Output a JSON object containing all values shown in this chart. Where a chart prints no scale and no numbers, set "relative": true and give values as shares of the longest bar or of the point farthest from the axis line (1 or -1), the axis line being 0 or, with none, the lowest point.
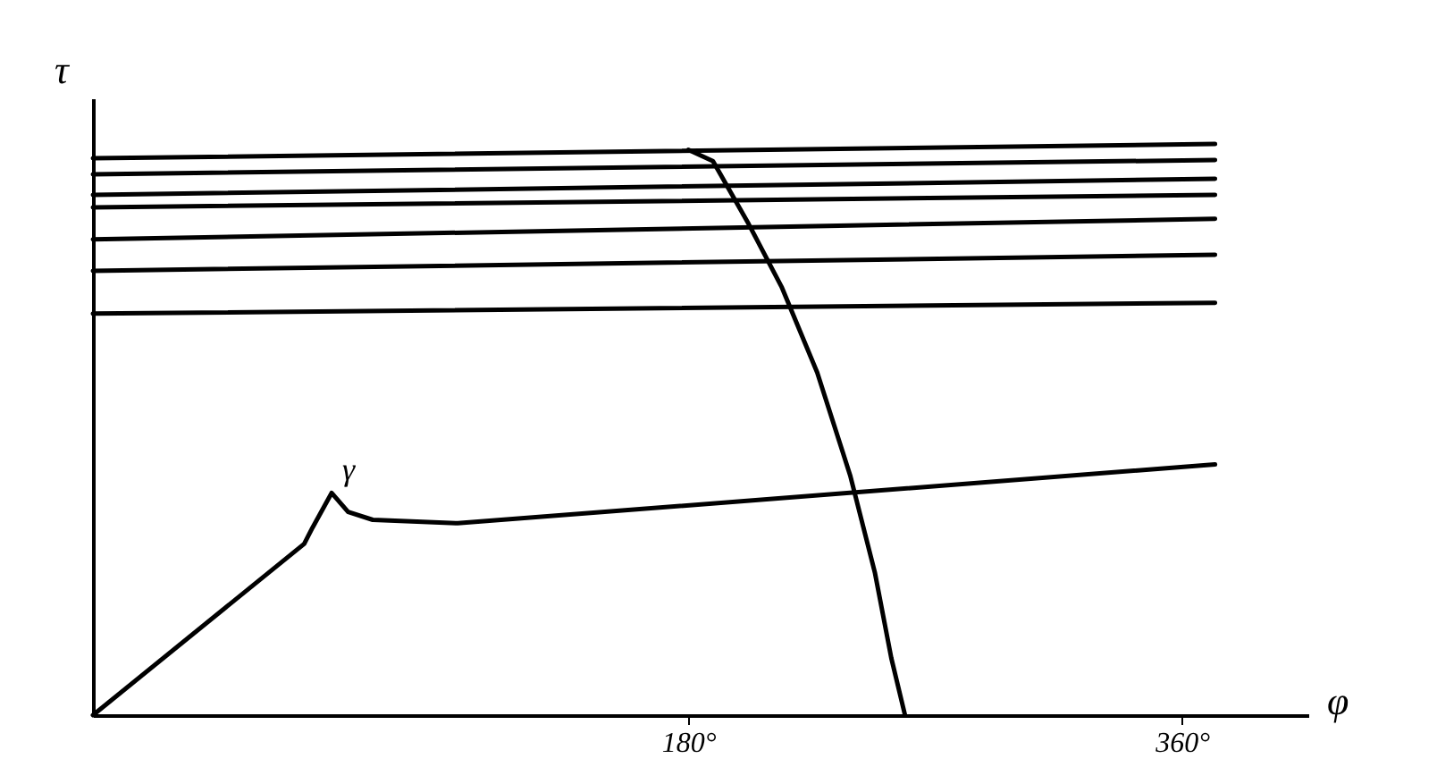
{
  "chart_data": {
    "type": "line",
    "relative": true,
    "xlabel": "φ",
    "ylabel": "τ",
    "xlim": [
      -37,
      406
    ],
    "xticks": [
      {
        "value": 180,
        "label": "180°"
      },
      {
        "value": 360,
        "label": "360°"
      }
    ],
    "tick_labels": "x",
    "grid": false,
    "marker": "none",
    "line_style": "solid",
    "annotations": [
      {
        "text": "γ",
        "x": 50,
        "y": 0.389
      }
    ],
    "series": [
      {
        "color": "#000000",
        "x": [
          -37,
          372
        ],
        "values": [
          0.975,
          1.0
        ]
      },
      {
        "color": "#000000",
        "x": [
          -37,
          372
        ],
        "values": [
          0.947,
          0.972
        ]
      },
      {
        "color": "#000000",
        "x": [
          -37,
          372
        ],
        "values": [
          0.911,
          0.939
        ]
      },
      {
        "color": "#000000",
        "x": [
          -37,
          372
        ],
        "values": [
          0.889,
          0.911
        ]
      },
      {
        "color": "#000000",
        "x": [
          -37,
          372
        ],
        "values": [
          0.833,
          0.869
        ]
      },
      {
        "color": "#000000",
        "x": [
          -37,
          372
        ],
        "values": [
          0.778,
          0.806
        ]
      },
      {
        "color": "#000000",
        "x": [
          -37,
          372
        ],
        "values": [
          0.703,
          0.722
        ]
      },
      {
        "color": "#000000",
        "x": [
          -37,
          40,
          43,
          50,
          56,
          65,
          96,
          372
        ],
        "values": [
          0,
          0.3,
          0.328,
          0.389,
          0.356,
          0.342,
          0.336,
          0.439
        ]
      },
      {
        "color": "#000000",
        "x": [
          180,
          189,
          202,
          214,
          227,
          239,
          248,
          254,
          259
        ],
        "values": [
          0.99,
          0.97,
          0.86,
          0.75,
          0.6,
          0.42,
          0.25,
          0.1,
          0
        ]
      }
    ]
  }
}
